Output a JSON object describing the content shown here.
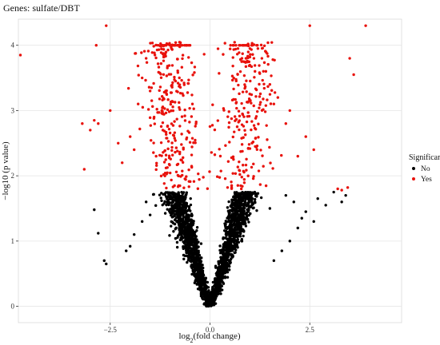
{
  "chart_data": {
    "type": "scatter",
    "title": "Genes: sulfate/DBT",
    "xlabel": "log2(fold change)",
    "xlabel_base": "log",
    "xlabel_sub": "2",
    "xlabel_rest": "(fold change)",
    "ylabel": "−log10 (p value)",
    "xlim": [
      -4.8,
      4.8
    ],
    "ylim": [
      -0.25,
      4.4
    ],
    "x_ticks": [
      -2.5,
      0.0,
      2.5
    ],
    "x_tick_labels": [
      "−2.5",
      "0.0",
      "2.5"
    ],
    "y_ticks": [
      0,
      1,
      2,
      3,
      4
    ],
    "y_tick_labels": [
      "0",
      "1",
      "2",
      "3",
      "4"
    ],
    "grid": true,
    "significance_threshold": 1.75,
    "legend": {
      "title": "Significant",
      "placement": "right",
      "items": [
        {
          "label": "No",
          "color": "#000000"
        },
        {
          "label": "Yes",
          "color": "#e8120c"
        }
      ]
    },
    "series": [
      {
        "name": "No",
        "color": "#000000",
        "description": "Non-significant genes forming a V-shaped volcano centered at x = 0, y values from 0 up to 1.75",
        "points": [
          [
            -2.9,
            1.48
          ],
          [
            -2.8,
            1.12
          ],
          [
            -2.6,
            0.65
          ],
          [
            -2.65,
            0.7
          ],
          [
            -2.1,
            0.85
          ],
          [
            -1.9,
            1.1
          ],
          [
            -2.0,
            0.92
          ],
          [
            -1.6,
            1.6
          ],
          [
            -1.7,
            1.3
          ],
          [
            -1.5,
            1.4
          ],
          [
            3.1,
            1.75
          ],
          [
            3.3,
            1.6
          ],
          [
            2.7,
            1.65
          ],
          [
            2.4,
            1.45
          ],
          [
            2.6,
            1.3
          ],
          [
            2.2,
            1.2
          ],
          [
            2.0,
            1.0
          ],
          [
            1.8,
            0.85
          ],
          [
            1.9,
            1.7
          ],
          [
            2.9,
            1.55
          ],
          [
            2.3,
            1.35
          ],
          [
            2.1,
            1.6
          ],
          [
            1.6,
            0.7
          ],
          [
            1.5,
            1.5
          ],
          [
            3.4,
            1.7
          ]
        ]
      },
      {
        "name": "Yes",
        "color": "#e8120c",
        "description": "Significant genes above 1.75 on −log10 (p value), clustered around x = ±1, capped at 4",
        "points": [
          [
            -2.6,
            4.3
          ],
          [
            -2.85,
            4.0
          ],
          [
            -4.8,
            3.85
          ],
          [
            -3.2,
            2.8
          ],
          [
            -3.15,
            2.1
          ],
          [
            -3.0,
            2.7
          ],
          [
            -2.9,
            2.85
          ],
          [
            -2.8,
            2.8
          ],
          [
            -2.5,
            3.0
          ],
          [
            -2.3,
            2.5
          ],
          [
            -2.2,
            2.2
          ],
          [
            -2.0,
            2.6
          ],
          [
            -1.9,
            2.4
          ],
          [
            -1.8,
            3.1
          ],
          [
            -1.7,
            3.5
          ],
          [
            -1.6,
            3.8
          ],
          [
            -1.5,
            3.3
          ],
          [
            -1.4,
            2.9
          ],
          [
            -1.3,
            4.0
          ],
          [
            -1.2,
            4.0
          ],
          [
            -1.1,
            4.0
          ],
          [
            -1.0,
            4.0
          ],
          [
            -0.9,
            4.0
          ],
          [
            -0.8,
            4.0
          ],
          [
            -0.7,
            4.0
          ],
          [
            -0.6,
            4.0
          ],
          [
            -0.5,
            4.0
          ],
          [
            2.5,
            4.3
          ],
          [
            3.9,
            4.3
          ],
          [
            3.5,
            3.8
          ],
          [
            3.6,
            3.55
          ],
          [
            3.3,
            1.78
          ],
          [
            3.2,
            1.8
          ],
          [
            3.45,
            1.82
          ],
          [
            2.6,
            2.4
          ],
          [
            2.4,
            2.6
          ],
          [
            2.2,
            2.3
          ],
          [
            2.0,
            3.0
          ],
          [
            1.9,
            2.8
          ],
          [
            1.7,
            3.2
          ],
          [
            1.6,
            3.1
          ],
          [
            1.5,
            3.4
          ],
          [
            1.4,
            3.6
          ],
          [
            1.3,
            3.8
          ],
          [
            1.2,
            3.95
          ],
          [
            1.1,
            3.8
          ],
          [
            1.0,
            3.95
          ],
          [
            0.9,
            3.8
          ],
          [
            0.8,
            3.8
          ],
          [
            0.7,
            3.95
          ]
        ]
      }
    ]
  }
}
